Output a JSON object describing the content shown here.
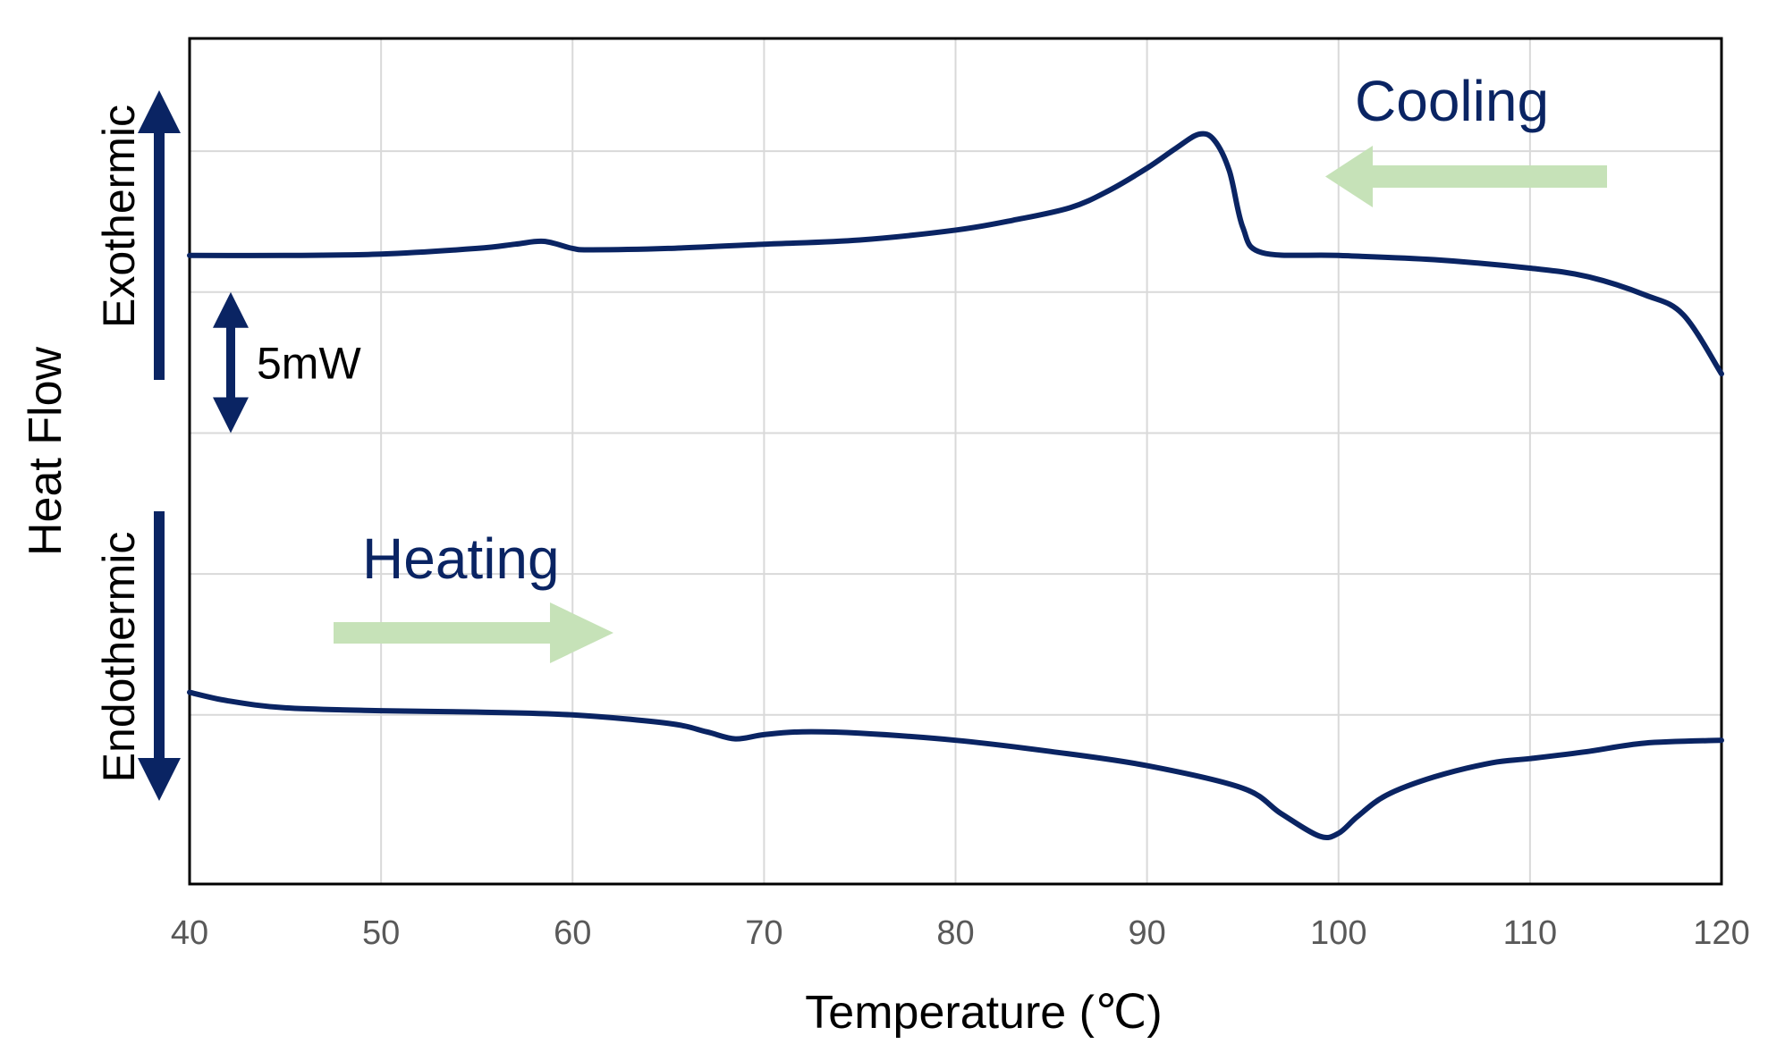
{
  "chart_data": {
    "type": "line",
    "title": "",
    "xlabel": "Temperature (℃)",
    "ylabel": "Heat Flow",
    "xlim": [
      40,
      120
    ],
    "ylim": [
      -6,
      24
    ],
    "xticks": [
      40,
      50,
      60,
      70,
      80,
      90,
      100,
      110,
      120
    ],
    "yticks_unlabeled": [
      0,
      5,
      10,
      15,
      20
    ],
    "grid": true,
    "line_color": "#0a2463",
    "arrow_fill_color": "#c6e2b8",
    "accent_color": "#0a2463",
    "series": [
      {
        "name": "Cooling",
        "x": [
          40,
          45,
          50,
          55,
          57,
          58.5,
          60,
          61,
          65,
          70,
          75,
          80,
          83,
          86,
          88,
          90,
          91.5,
          92.7,
          93.5,
          94.3,
          95,
          96,
          100,
          105,
          110,
          113,
          116,
          118,
          120
        ],
        "y": [
          16.3,
          16.3,
          16.35,
          16.55,
          16.7,
          16.8,
          16.55,
          16.5,
          16.55,
          16.7,
          16.85,
          17.2,
          17.55,
          18.0,
          18.6,
          19.4,
          20.1,
          20.6,
          20.4,
          19.3,
          17.3,
          16.4,
          16.3,
          16.15,
          15.85,
          15.55,
          14.9,
          14.2,
          12.1
        ]
      },
      {
        "name": "Heating",
        "x": [
          40,
          42,
          45,
          50,
          55,
          60,
          65,
          67,
          68.5,
          70,
          72,
          75,
          80,
          85,
          90,
          95,
          97,
          99,
          100,
          101,
          102.5,
          105,
          108,
          110,
          113,
          116,
          120
        ],
        "y": [
          0.8,
          0.5,
          0.25,
          0.15,
          0.1,
          0.0,
          -0.3,
          -0.6,
          -0.85,
          -0.7,
          -0.6,
          -0.65,
          -0.9,
          -1.3,
          -1.8,
          -2.6,
          -3.5,
          -4.3,
          -4.2,
          -3.6,
          -2.85,
          -2.2,
          -1.7,
          -1.55,
          -1.3,
          -1.0,
          -0.9
        ]
      }
    ],
    "annotations": {
      "cooling_label": "Cooling",
      "heating_label": "Heating",
      "exothermic_label": "Exothermic",
      "endothermic_label": "Endothermic",
      "scale_bar_label": "5mW",
      "scale_bar_value": 5,
      "scale_bar_unit": "mW"
    }
  }
}
